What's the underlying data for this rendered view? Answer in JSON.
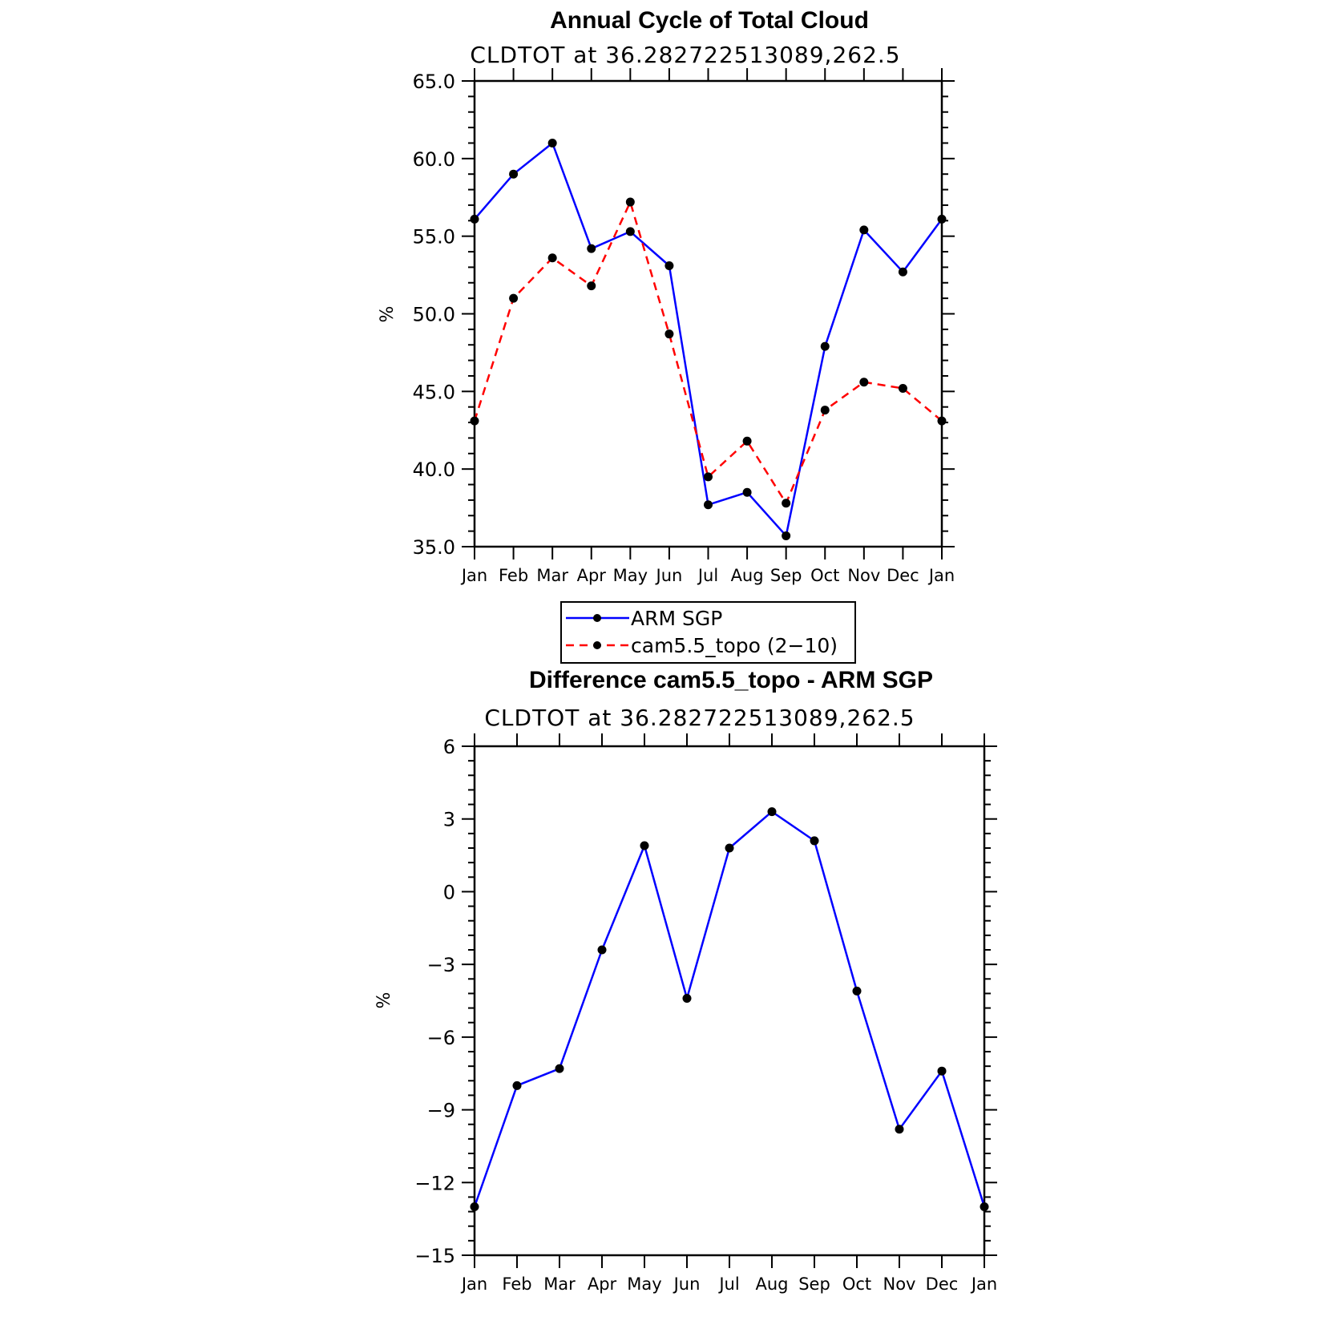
{
  "chart_data": [
    {
      "type": "line",
      "title": "Annual Cycle of Total Cloud",
      "subtitle": "CLDTOT at 36.282722513089,262.5",
      "ylabel": "%",
      "xlabel": "",
      "categories": [
        "Jan",
        "Feb",
        "Mar",
        "Apr",
        "May",
        "Jun",
        "Jul",
        "Aug",
        "Sep",
        "Oct",
        "Nov",
        "Dec",
        "Jan"
      ],
      "ylim": [
        35.0,
        65.0
      ],
      "yticks": [
        "35.0",
        "40.0",
        "45.0",
        "50.0",
        "55.0",
        "60.0",
        "65.0"
      ],
      "yticks_values": [
        35,
        40,
        45,
        50,
        55,
        60,
        65
      ],
      "grid": false,
      "legend_position": "below",
      "series": [
        {
          "name": "ARM SGP",
          "color": "#0000ff",
          "style": "solid",
          "marker": "dot",
          "values": [
            56.1,
            59.0,
            61.0,
            54.2,
            55.3,
            53.1,
            37.7,
            38.5,
            35.7,
            47.9,
            55.4,
            52.7,
            56.1
          ]
        },
        {
          "name": "cam5.5_topo (2−10)",
          "color": "#ff0000",
          "style": "dashed",
          "marker": "dot",
          "values": [
            43.1,
            51.0,
            53.6,
            51.8,
            57.2,
            48.7,
            39.5,
            41.8,
            37.8,
            43.8,
            45.6,
            45.2,
            43.1
          ]
        }
      ]
    },
    {
      "type": "line",
      "title": "Difference cam5.5_topo - ARM SGP",
      "subtitle": "CLDTOT at 36.282722513089,262.5",
      "ylabel": "%",
      "xlabel": "",
      "categories": [
        "Jan",
        "Feb",
        "Mar",
        "Apr",
        "May",
        "Jun",
        "Jul",
        "Aug",
        "Sep",
        "Oct",
        "Nov",
        "Dec",
        "Jan"
      ],
      "ylim": [
        -15,
        6
      ],
      "yticks": [
        "−15",
        "−12",
        "−9",
        "−6",
        "−3",
        "0",
        "3",
        "6"
      ],
      "yticks_values": [
        -15,
        -12,
        -9,
        -6,
        -3,
        0,
        3,
        6
      ],
      "grid": false,
      "series": [
        {
          "color": "#0000ff",
          "style": "solid",
          "marker": "dot",
          "values": [
            -13.0,
            -8.0,
            -7.3,
            -2.4,
            1.9,
            -4.4,
            1.8,
            3.3,
            2.1,
            -4.1,
            -9.8,
            -7.4,
            -13.0
          ]
        }
      ]
    }
  ]
}
